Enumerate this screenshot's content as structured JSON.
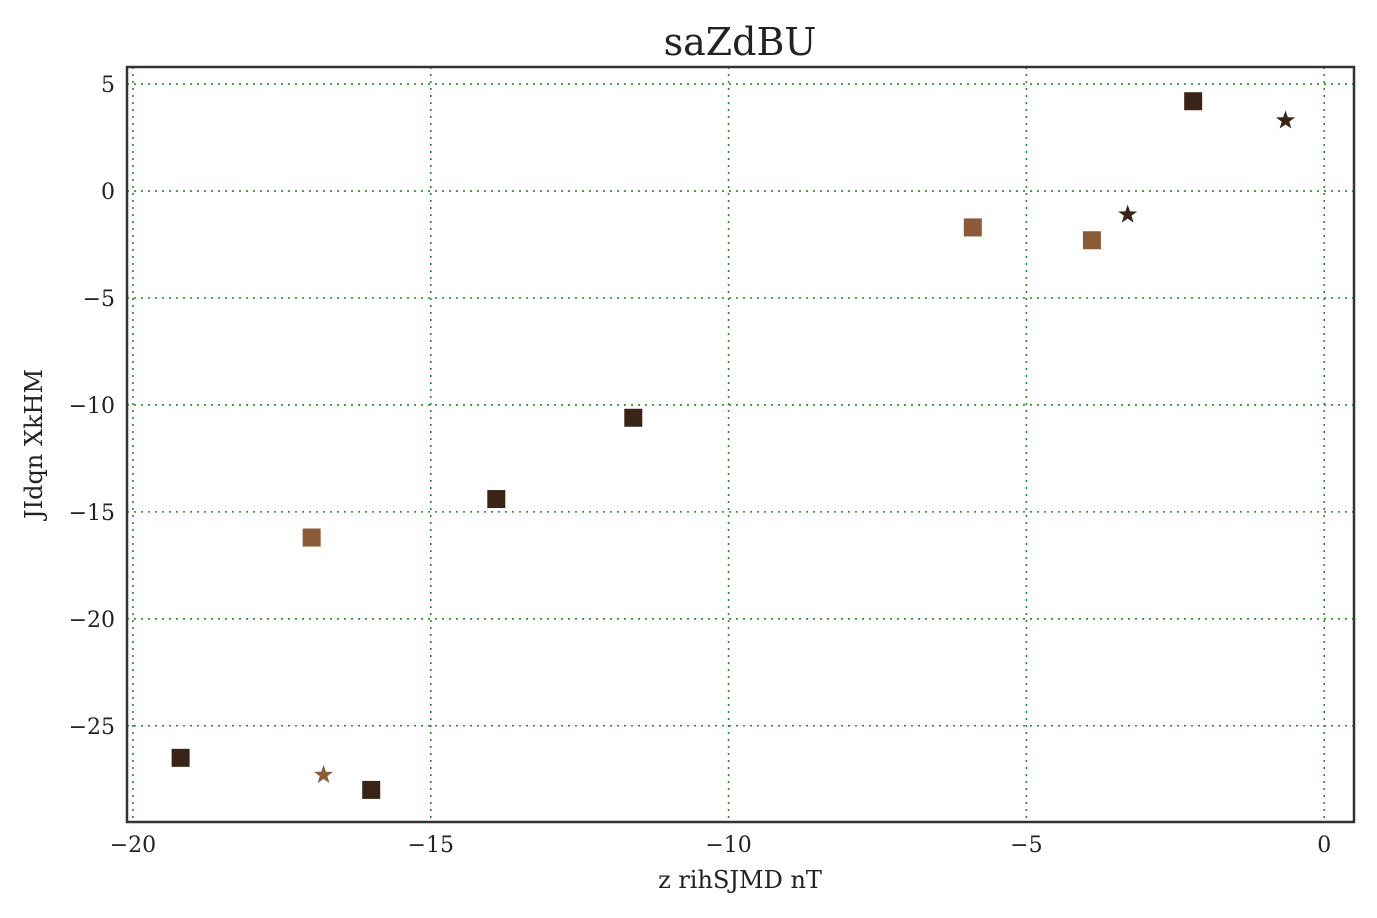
{
  "chart_data": {
    "type": "scatter",
    "title": "saZdBU",
    "xlabel": "z rihSJMD nT",
    "ylabel": "JIdqn XkHM",
    "xlim": [
      -20.1,
      0.5
    ],
    "ylim": [
      -29.5,
      5.8
    ],
    "xticks": [
      -20,
      -15,
      -10,
      -5,
      0
    ],
    "yticks": [
      5,
      0,
      -5,
      -10,
      -15,
      -20,
      -25
    ],
    "xtick_labels": [
      "−20",
      "−15",
      "−10",
      "−5",
      "0"
    ],
    "ytick_labels": [
      "5",
      "0",
      "−5",
      "−10",
      "−15",
      "−20",
      "−25"
    ],
    "grid": true,
    "legend": "none",
    "colors": {
      "dark": "#3a2418",
      "light": "#8b5a37",
      "grid": "#2a8a2a"
    },
    "series": [
      {
        "marker": "square",
        "color": "#3a2418",
        "points": [
          [
            -19.2,
            -26.5
          ],
          [
            -16.0,
            -28.0
          ],
          [
            -13.9,
            -14.4
          ],
          [
            -11.6,
            -10.6
          ],
          [
            -2.2,
            4.2
          ]
        ]
      },
      {
        "marker": "square",
        "color": "#8b5a37",
        "points": [
          [
            -17.0,
            -16.2
          ],
          [
            -5.9,
            -1.7
          ],
          [
            -3.9,
            -2.3
          ]
        ]
      },
      {
        "marker": "star",
        "color": "#3a2418",
        "points": [
          [
            -3.3,
            -1.1
          ],
          [
            -0.65,
            3.3
          ]
        ]
      },
      {
        "marker": "star",
        "color": "#8b5a37",
        "points": [
          [
            -16.8,
            -27.3
          ]
        ]
      }
    ]
  }
}
